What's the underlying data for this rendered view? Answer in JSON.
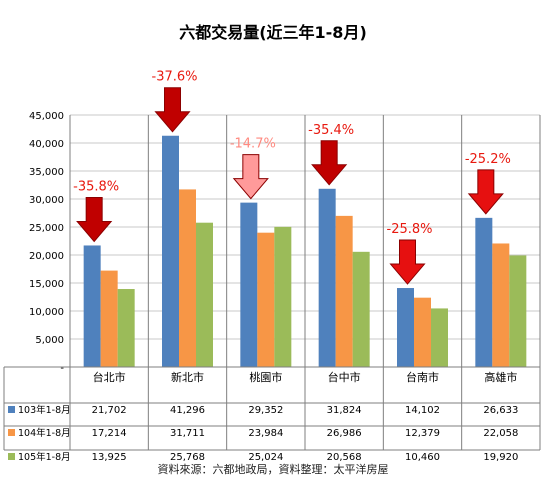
{
  "chart_data": {
    "type": "bar",
    "title": "六都交易量(近三年1-8月)",
    "categories": [
      "台北市",
      "新北市",
      "桃園市",
      "台中市",
      "台南市",
      "高雄市"
    ],
    "series": [
      {
        "name": "103年1-8月",
        "values": [
          21702,
          41296,
          29352,
          31824,
          14102,
          26633
        ],
        "color": "#4f81bd"
      },
      {
        "name": "104年1-8月",
        "values": [
          17214,
          31711,
          23984,
          26986,
          12379,
          22058
        ],
        "color": "#f79646"
      },
      {
        "name": "105年1-8月",
        "values": [
          13925,
          25768,
          25024,
          20568,
          10460,
          19920
        ],
        "color": "#9bbb59"
      }
    ],
    "table_values": [
      [
        "21,702",
        "41,296",
        "29,352",
        "31,824",
        "14,102",
        "26,633"
      ],
      [
        "17,214",
        "31,711",
        "23,984",
        "26,986",
        "12,379",
        "22,058"
      ],
      [
        "13,925",
        "25,768",
        "25,024",
        "20,568",
        "10,460",
        "19,920"
      ]
    ],
    "ylim": [
      0,
      45000
    ],
    "yticks": [
      0,
      5000,
      10000,
      15000,
      20000,
      25000,
      30000,
      35000,
      40000,
      45000
    ],
    "ytick_labels": [
      "-",
      "5,000",
      "10,000",
      "15,000",
      "20,000",
      "25,000",
      "30,000",
      "35,000",
      "40,000",
      "45,000"
    ],
    "grid": true,
    "annotations": [
      {
        "category": "台北市",
        "text": "-35.8%",
        "color": "#e8190f",
        "arrow_color": "#c00000"
      },
      {
        "category": "新北市",
        "text": "-37.6%",
        "color": "#e8190f",
        "arrow_color": "#c00000"
      },
      {
        "category": "桃園市",
        "text": "-14.7%",
        "color": "#ff8a80",
        "arrow_color": "#ff9a9a"
      },
      {
        "category": "台中市",
        "text": "-35.4%",
        "color": "#e8190f",
        "arrow_color": "#c00000"
      },
      {
        "category": "台南市",
        "text": "-25.8%",
        "color": "#e8190f",
        "arrow_color": "#e61010"
      },
      {
        "category": "高雄市",
        "text": "-25.2%",
        "color": "#e8190f",
        "arrow_color": "#e61010"
      }
    ],
    "source": "資料來源：六都地政局，資料整理：太平洋房屋"
  }
}
